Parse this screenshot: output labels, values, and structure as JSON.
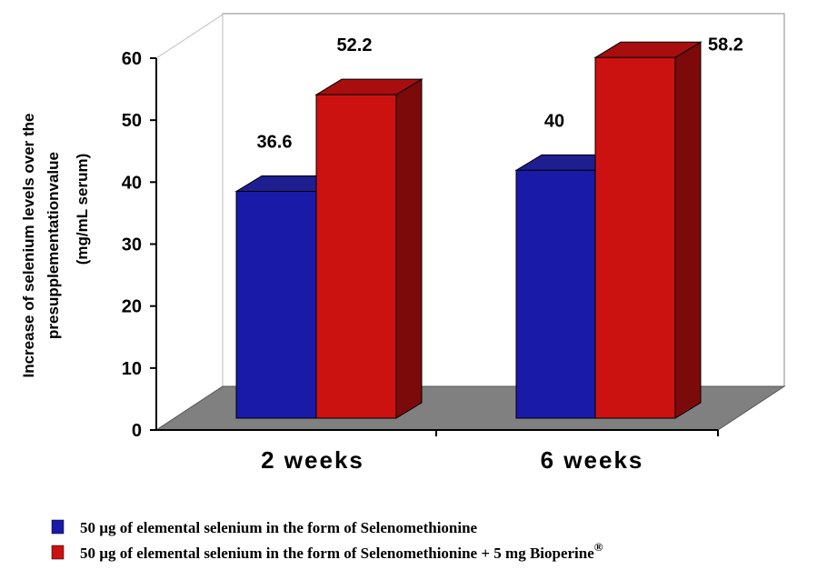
{
  "chart_data": {
    "type": "bar",
    "style": "3d-clustered",
    "categories": [
      "2 weeks",
      "6 weeks"
    ],
    "series": [
      {
        "name": "50 µg of elemental selenium in the form of Selenomethionine",
        "values": [
          36.6,
          40
        ],
        "color": "#1a1aa8",
        "labels": [
          "36.6",
          "40"
        ]
      },
      {
        "name": "50 µg of elemental selenium in the form of Selenomethionine + 5 mg Bioperine",
        "values": [
          52.2,
          58.2
        ],
        "color": "#cc1111",
        "labels": [
          "52.2",
          "58.2"
        ]
      }
    ],
    "legend_superscript": "®",
    "ylabel_lines": [
      "Increase of selenium levels over the",
      "presupplementationvalue",
      "(mg/mL serum)"
    ],
    "yticks": [
      "0",
      "10",
      "20",
      "30",
      "40",
      "50",
      "60"
    ],
    "ylim": [
      0,
      60
    ],
    "legend_position": "bottom",
    "floor_color": "#808080"
  }
}
